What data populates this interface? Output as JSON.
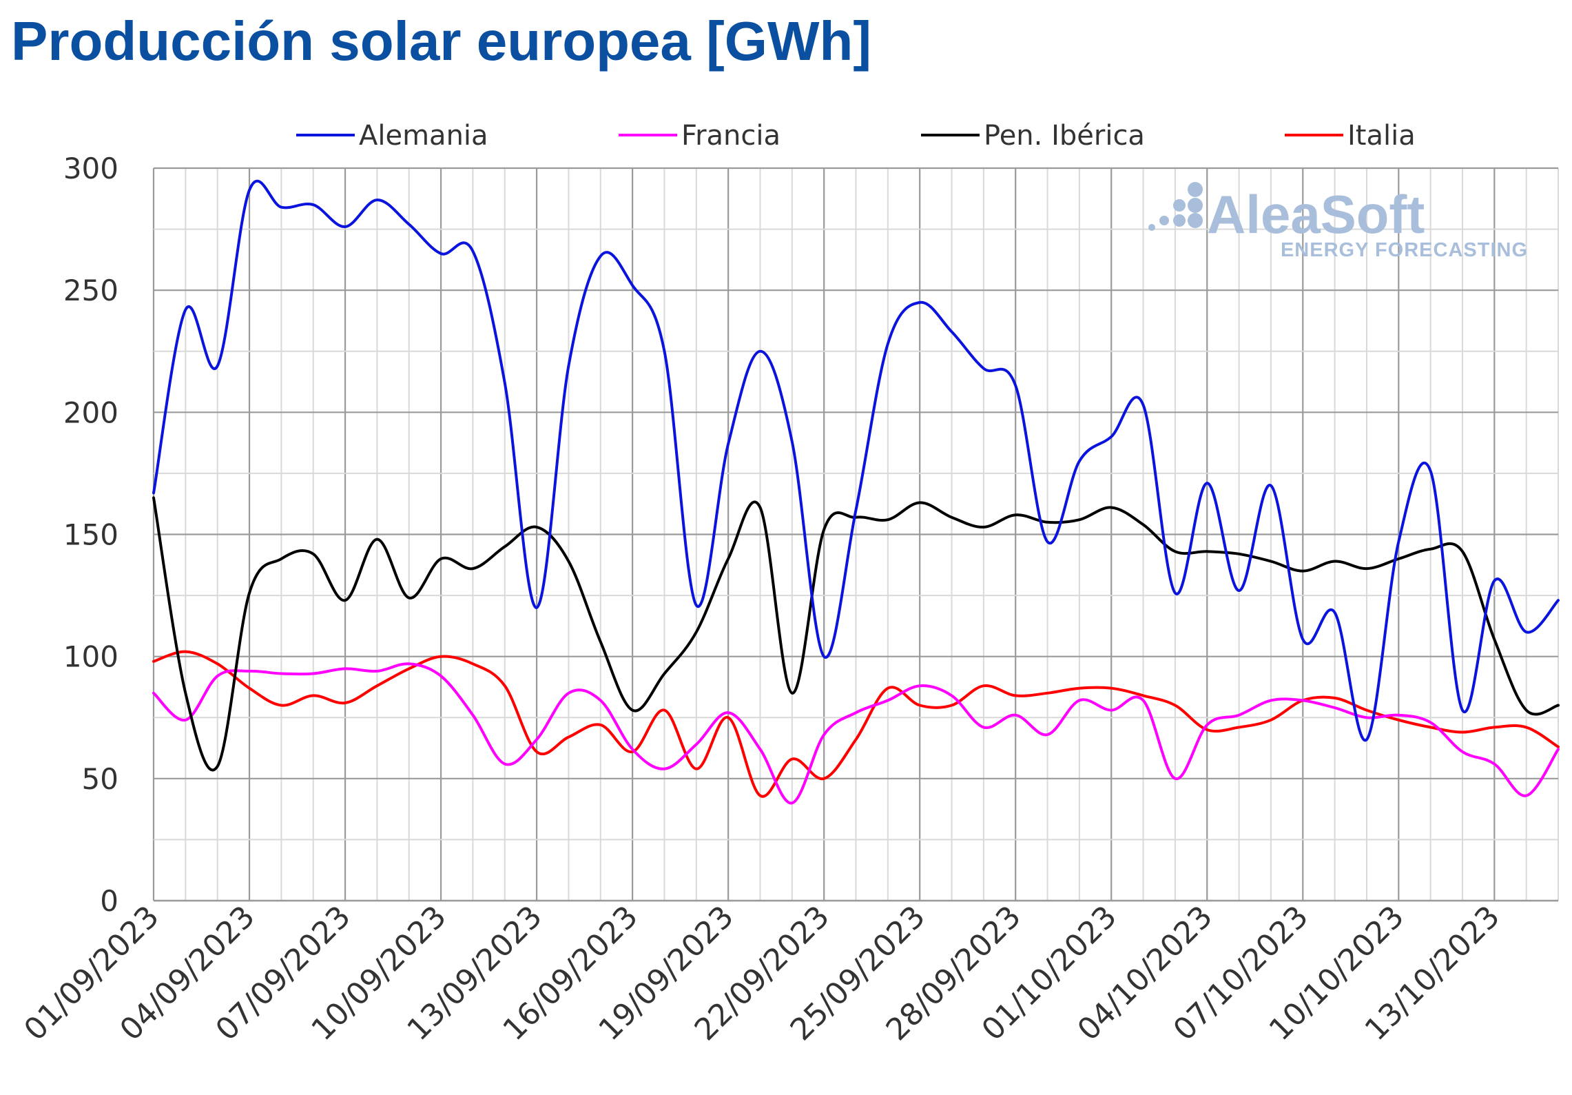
{
  "title": "Producción solar europea [GWh]",
  "watermark": {
    "name": "AleaSoft",
    "tagline": "ENERGY FORECASTING",
    "color": "#a9bedb"
  },
  "chart_data": {
    "type": "line",
    "title": "Producción solar europea [GWh]",
    "xlabel": "",
    "ylabel": "",
    "ylim": [
      0,
      300
    ],
    "yticks": [
      0,
      50,
      100,
      150,
      200,
      250,
      300
    ],
    "grid": true,
    "legend_position": "top",
    "categories": [
      "01/09/2023",
      "02/09/2023",
      "03/09/2023",
      "04/09/2023",
      "05/09/2023",
      "06/09/2023",
      "07/09/2023",
      "08/09/2023",
      "09/09/2023",
      "10/09/2023",
      "11/09/2023",
      "12/09/2023",
      "13/09/2023",
      "14/09/2023",
      "15/09/2023",
      "16/09/2023",
      "17/09/2023",
      "18/09/2023",
      "19/09/2023",
      "20/09/2023",
      "21/09/2023",
      "22/09/2023",
      "23/09/2023",
      "24/09/2023",
      "25/09/2023",
      "26/09/2023",
      "27/09/2023",
      "28/09/2023",
      "29/09/2023",
      "30/09/2023",
      "01/10/2023",
      "02/10/2023",
      "03/10/2023",
      "04/10/2023",
      "05/10/2023",
      "06/10/2023",
      "07/10/2023",
      "08/10/2023",
      "09/10/2023",
      "10/10/2023",
      "11/10/2023",
      "12/10/2023",
      "13/10/2023",
      "14/10/2023",
      "15/10/2023"
    ],
    "tick_labels": [
      "01/09/2023",
      "04/09/2023",
      "07/09/2023",
      "10/09/2023",
      "13/09/2023",
      "16/09/2023",
      "19/09/2023",
      "22/09/2023",
      "25/09/2023",
      "28/09/2023",
      "01/10/2023",
      "04/10/2023",
      "07/10/2023",
      "10/10/2023",
      "13/10/2023"
    ],
    "series": [
      {
        "name": "Alemania",
        "color": "#0a14dc",
        "values": [
          167,
          242,
          219,
          291,
          284,
          285,
          276,
          287,
          277,
          265,
          266,
          212,
          120,
          219,
          264,
          252,
          225,
          121,
          187,
          225,
          188,
          100,
          160,
          228,
          245,
          233,
          218,
          211,
          147,
          180,
          190,
          203,
          126,
          171,
          127,
          170,
          107,
          118,
          66,
          147,
          176,
          78,
          131,
          110,
          123
        ]
      },
      {
        "name": "Francia",
        "color": "#ff00ff",
        "values": [
          85,
          74,
          92,
          94,
          93,
          93,
          95,
          94,
          97,
          92,
          76,
          56,
          66,
          85,
          82,
          62,
          54,
          64,
          77,
          62,
          40,
          68,
          77,
          82,
          88,
          84,
          71,
          76,
          68,
          82,
          78,
          82,
          50,
          72,
          76,
          82,
          82,
          79,
          75,
          76,
          73,
          61,
          56,
          43,
          62
        ]
      },
      {
        "name": "Pen. Ibérica",
        "color": "#000000",
        "values": [
          165,
          85,
          55,
          126,
          140,
          142,
          123,
          148,
          124,
          140,
          136,
          145,
          153,
          139,
          106,
          78,
          93,
          110,
          140,
          161,
          85,
          152,
          157,
          156,
          163,
          157,
          153,
          158,
          155,
          156,
          161,
          154,
          143,
          143,
          142,
          139,
          135,
          139,
          136,
          140,
          144,
          143,
          107,
          78,
          80
        ]
      },
      {
        "name": "Italia",
        "color": "#ff0000",
        "values": [
          98,
          102,
          97,
          87,
          80,
          84,
          81,
          88,
          95,
          100,
          97,
          88,
          61,
          67,
          72,
          61,
          78,
          54,
          75,
          43,
          58,
          50,
          66,
          87,
          80,
          80,
          88,
          84,
          85,
          87,
          87,
          84,
          80,
          70,
          71,
          74,
          82,
          83,
          78,
          74,
          71,
          69,
          71,
          71,
          63
        ]
      }
    ]
  }
}
